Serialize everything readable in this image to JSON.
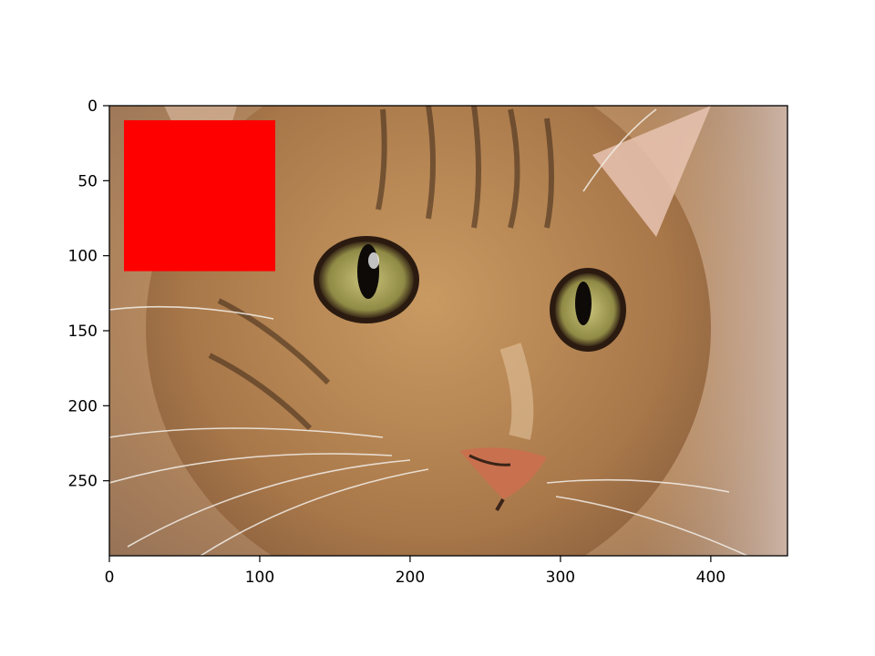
{
  "chart_data": {
    "type": "image",
    "title": "",
    "xlabel": "",
    "ylabel": "",
    "image_content": "cat-face-photo",
    "image_width": 451,
    "image_height": 300,
    "xlim": [
      0,
      451
    ],
    "ylim": [
      300,
      0
    ],
    "x_ticks": [
      0,
      100,
      200,
      300,
      400
    ],
    "y_ticks": [
      0,
      50,
      100,
      150,
      200,
      250
    ],
    "x_tick_labels": [
      "0",
      "100",
      "200",
      "300",
      "400"
    ],
    "y_tick_labels": [
      "0",
      "50",
      "100",
      "150",
      "200",
      "250"
    ],
    "annotations": [
      {
        "type": "rectangle",
        "x_range": [
          10,
          110
        ],
        "y_range": [
          10,
          110
        ],
        "color": "#ff0000",
        "filled": true
      }
    ],
    "grid": false,
    "legend": "none"
  }
}
